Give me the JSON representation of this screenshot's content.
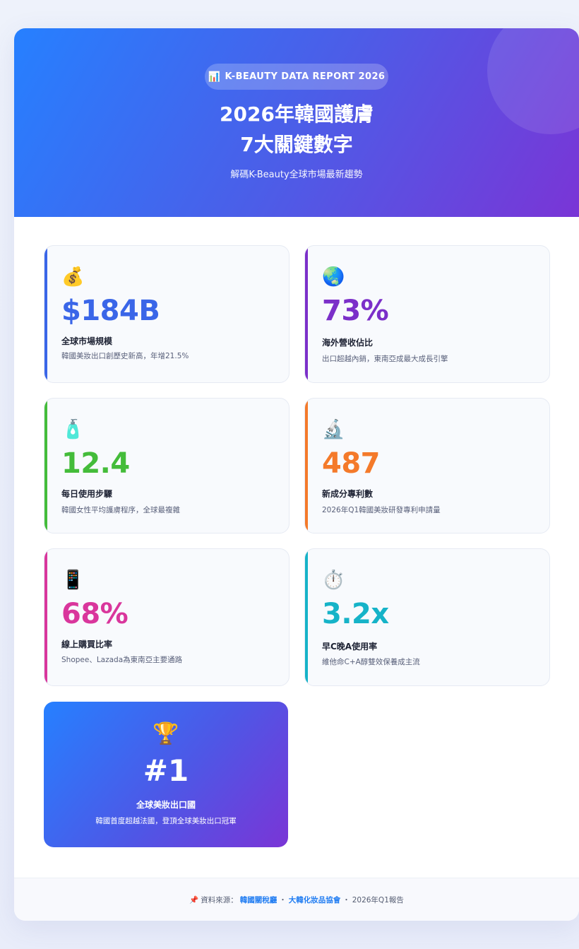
{
  "header": {
    "badge_icon": "📊",
    "badge_text": "K-BEAUTY DATA REPORT 2026",
    "title_line1": "2026年韓國護膚",
    "title_line2": "7大關鍵數字",
    "subtitle": "解碼K-Beauty全球市場最新趨勢"
  },
  "stats": [
    {
      "icon": "💰",
      "value": "$184B",
      "label": "全球市場規模",
      "desc": "韓國美妝出口創歷史新高，年增21.5%",
      "color": "#3a66e8"
    },
    {
      "icon": "🌏",
      "value": "73%",
      "label": "海外營收佔比",
      "desc": "出口超越內銷，東南亞成最大成長引擎",
      "color": "#7b2fc9"
    },
    {
      "icon": "🧴",
      "value": "12.4",
      "label": "每日使用步驟",
      "desc": "韓國女性平均護膚程序，全球最複雜",
      "color": "#44bc3a"
    },
    {
      "icon": "🔬",
      "value": "487",
      "label": "新成分專利數",
      "desc": "2026年Q1韓國美妝研發專利申請量",
      "color": "#f47a2a"
    },
    {
      "icon": "📱",
      "value": "68%",
      "label": "線上購買比率",
      "desc": "Shopee、Lazada為東南亞主要通路",
      "color": "#d9369c"
    },
    {
      "icon": "⏱️",
      "value": "3.2x",
      "label": "早C晚A使用率",
      "desc": "維他命C+A醇雙效保養成主流",
      "color": "#16b3c8"
    }
  ],
  "feature": {
    "icon": "🏆",
    "value": "#1",
    "label": "全球美妝出口國",
    "desc": "韓國首度超越法國，登頂全球美妝出口冠軍"
  },
  "footer": {
    "icon": "📌",
    "prefix": "資料來源：",
    "source1": "韓國關稅廳",
    "sep1": "・",
    "source2": "大韓化妝品協會",
    "sep2": "・",
    "suffix": "2026年Q1報告"
  }
}
